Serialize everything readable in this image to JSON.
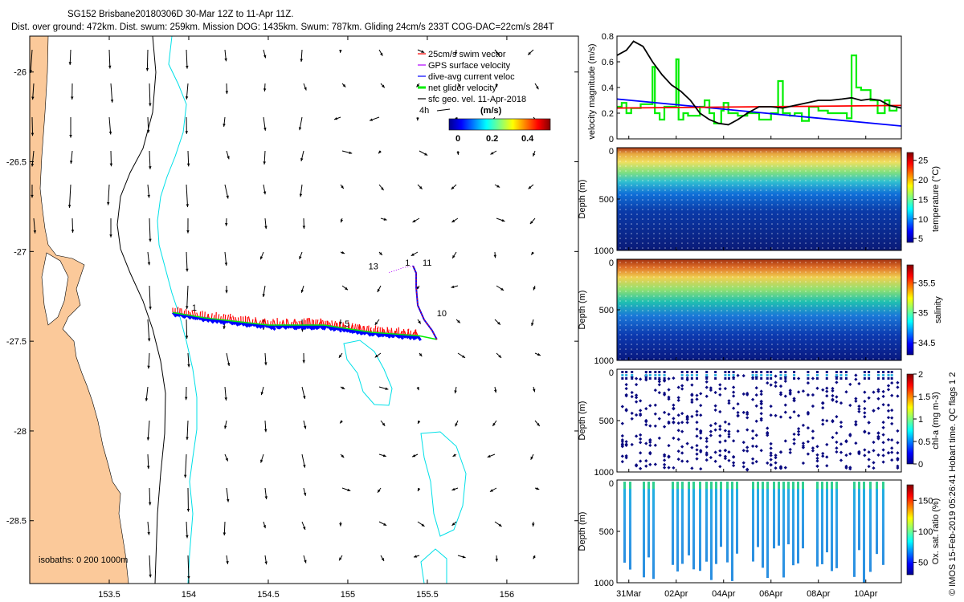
{
  "header": {
    "title_line1": "SG152 Brisbane20180306D 30-Mar 12Z to 11-Apr 11Z.",
    "title_line2": "Dist. over ground: 472km. Dist. swum: 259km. Mission DOG: 1435km. Swum: 787km. Gliding 24cm/s 233T COG-DAC=22cm/s 284T"
  },
  "side_note": "© IMOS 15-Feb-2019 05:26:41 Hobart time. QC flags 1  2",
  "colors": {
    "land": "#fbc99a",
    "isobath_200": "#00e0e8",
    "isobath_1000": "#000000",
    "swim": "#ff0000",
    "gps": "#b000ff",
    "dac": "#0000ff",
    "net": "#00ee00",
    "sfc": "#000000"
  },
  "chart_data": [
    {
      "id": "map",
      "type": "scatter",
      "title": "Glider track map",
      "x_ticks": [
        "153.5",
        "154",
        "154.5",
        "155",
        "155.5",
        "156"
      ],
      "x_values": [
        153.5,
        154,
        154.5,
        155,
        155.5,
        156
      ],
      "y_ticks": [
        "-26",
        "-26.5",
        "-27",
        "-27.5",
        "-28",
        "-28.5"
      ],
      "y_values": [
        -26,
        -26.5,
        -27,
        -27.5,
        -28,
        -28.5
      ],
      "xlim": [
        153.0,
        156.45
      ],
      "ylim": [
        -28.85,
        -25.8
      ],
      "legend": [
        {
          "label": "25cm/s swim vector",
          "color": "#ff0000"
        },
        {
          "label": "GPS surface velocity",
          "color": "#b000ff"
        },
        {
          "label": "dive-avg current veloc",
          "color": "#0000ff"
        },
        {
          "label": "net glider velocity",
          "color": "#00ee00"
        },
        {
          "label": "sfc geo. vel. 11-Apr-2018",
          "color": "#000000"
        }
      ],
      "colorbar": {
        "title": "(m/s)",
        "ticks": [
          "0",
          "0.2",
          "0.4"
        ],
        "range": [
          0,
          0.5
        ],
        "scale_label": "4h"
      },
      "isobath_label": "isobaths: 0   200   1000m",
      "track": [
        [
          153.9,
          -27.34
        ],
        [
          154.1,
          -27.37
        ],
        [
          154.3,
          -27.39
        ],
        [
          154.5,
          -27.41
        ],
        [
          154.7,
          -27.41
        ],
        [
          154.85,
          -27.41
        ],
        [
          155.0,
          -27.43
        ],
        [
          155.15,
          -27.45
        ],
        [
          155.3,
          -27.46
        ],
        [
          155.45,
          -27.47
        ],
        [
          155.56,
          -27.49
        ],
        [
          155.53,
          -27.44
        ],
        [
          155.48,
          -27.38
        ],
        [
          155.44,
          -27.3
        ],
        [
          155.43,
          -27.2
        ],
        [
          155.43,
          -27.12
        ],
        [
          155.41,
          -27.08
        ],
        [
          155.35,
          -27.09
        ],
        [
          155.25,
          -27.12
        ]
      ],
      "track_labels": [
        {
          "text": "1",
          "lon": 154.02,
          "lat": -27.33
        },
        {
          "text": "5",
          "lon": 154.98,
          "lat": -27.42
        },
        {
          "text": "10",
          "lon": 155.56,
          "lat": -27.36
        },
        {
          "text": "11",
          "lon": 155.47,
          "lat": -27.08
        },
        {
          "text": "1",
          "lon": 155.36,
          "lat": -27.08
        },
        {
          "text": "13",
          "lon": 155.13,
          "lat": -27.1
        }
      ]
    },
    {
      "id": "velocity",
      "type": "line",
      "ylabel": "velocity magnitude (m/s)",
      "ylim": [
        0,
        0.8
      ],
      "y_ticks": [
        "0",
        "0.2",
        "0.4",
        "0.6",
        "0.8"
      ],
      "xlim": [
        30.5,
        42.5
      ],
      "series": [
        {
          "name": "net glider velocity",
          "color": "#00ee00",
          "x": [
            30.5,
            30.7,
            30.9,
            31.1,
            31.5,
            32.0,
            32.1,
            32.3,
            32.5,
            33.0,
            33.1,
            33.3,
            33.5,
            34.0,
            34.2,
            34.4,
            34.6,
            34.9,
            35.0,
            35.2,
            35.6,
            36.0,
            36.5,
            37.0,
            37.3,
            37.5,
            37.8,
            38.0,
            38.3,
            38.6,
            39.0,
            39.4,
            39.8,
            40.2,
            40.4,
            40.6,
            40.8,
            41.2,
            41.5,
            41.8,
            42.0,
            42.3
          ],
          "y": [
            0.25,
            0.28,
            0.2,
            0.24,
            0.27,
            0.56,
            0.2,
            0.15,
            0.25,
            0.62,
            0.15,
            0.2,
            0.18,
            0.25,
            0.3,
            0.2,
            0.12,
            0.22,
            0.28,
            0.2,
            0.18,
            0.2,
            0.15,
            0.2,
            0.45,
            0.2,
            0.18,
            0.2,
            0.14,
            0.25,
            0.22,
            0.2,
            0.2,
            0.16,
            0.65,
            0.4,
            0.38,
            0.3,
            0.2,
            0.3,
            0.22,
            0.24
          ]
        },
        {
          "name": "dive-avg current",
          "color": "#0000ff",
          "x": [
            30.5,
            42.5
          ],
          "y": [
            0.31,
            0.1
          ]
        },
        {
          "name": "swim speed",
          "color": "#ff0000",
          "x": [
            30.5,
            42.5
          ],
          "y": [
            0.24,
            0.26
          ]
        },
        {
          "name": "sfc geo. vel.",
          "color": "#000000",
          "x": [
            30.5,
            30.9,
            31.2,
            31.6,
            32.0,
            32.4,
            32.8,
            33.2,
            33.6,
            34.0,
            34.4,
            34.8,
            35.2,
            35.6,
            36.0,
            36.5,
            37.0,
            37.5,
            38.0,
            38.5,
            39.0,
            39.5,
            40.0,
            40.4,
            40.8,
            41.2,
            41.6,
            42.0,
            42.5
          ],
          "y": [
            0.65,
            0.69,
            0.76,
            0.72,
            0.6,
            0.5,
            0.42,
            0.37,
            0.3,
            0.2,
            0.15,
            0.12,
            0.11,
            0.15,
            0.2,
            0.25,
            0.25,
            0.24,
            0.26,
            0.28,
            0.3,
            0.3,
            0.31,
            0.32,
            0.3,
            0.31,
            0.3,
            0.26,
            0.24
          ]
        }
      ]
    },
    {
      "id": "temperature",
      "type": "heatmap",
      "ylabel": "Depth (m)",
      "ylim": [
        1000,
        0
      ],
      "y_ticks": [
        "0",
        "500",
        "1000"
      ],
      "colorbar_label": "temperature (°C)",
      "cb_ticks": [
        "5",
        "10",
        "15",
        "20",
        "25"
      ],
      "cb_values": [
        5,
        10,
        15,
        20,
        25
      ],
      "cb_range": [
        4,
        27
      ]
    },
    {
      "id": "salinity",
      "type": "heatmap",
      "ylabel": "Depth (m)",
      "ylim": [
        1000,
        0
      ],
      "y_ticks": [
        "0",
        "500",
        "1000"
      ],
      "colorbar_label": "salinity",
      "cb_ticks": [
        "34.5",
        "35",
        "35.5"
      ],
      "cb_values": [
        34.5,
        35,
        35.5
      ],
      "cb_range": [
        34.3,
        35.8
      ]
    },
    {
      "id": "chla",
      "type": "scatter",
      "ylabel": "Depth (m)",
      "ylim": [
        1000,
        0
      ],
      "y_ticks": [
        "0",
        "500",
        "1000"
      ],
      "colorbar_label": "chl-a (mg m-3)",
      "cb_ticks": [
        "0",
        "0.5",
        "1",
        "1.5",
        "2"
      ],
      "cb_values": [
        0,
        0.5,
        1,
        1.5,
        2
      ],
      "cb_range": [
        0,
        2
      ]
    },
    {
      "id": "oxygen",
      "type": "scatter",
      "ylabel": "Depth (m)",
      "ylim": [
        1000,
        0
      ],
      "y_ticks": [
        "0",
        "500",
        "1000"
      ],
      "colorbar_label": "Ox. sat. ratio (%)",
      "cb_ticks": [
        "50",
        "100",
        "150"
      ],
      "cb_values": [
        50,
        100,
        150
      ],
      "cb_range": [
        30,
        175
      ]
    }
  ],
  "time_axis": {
    "labels": [
      "31Mar",
      "02Apr",
      "04Apr",
      "06Apr",
      "08Apr",
      "10Apr"
    ],
    "days": [
      31,
      33,
      35,
      37,
      39,
      41
    ]
  }
}
